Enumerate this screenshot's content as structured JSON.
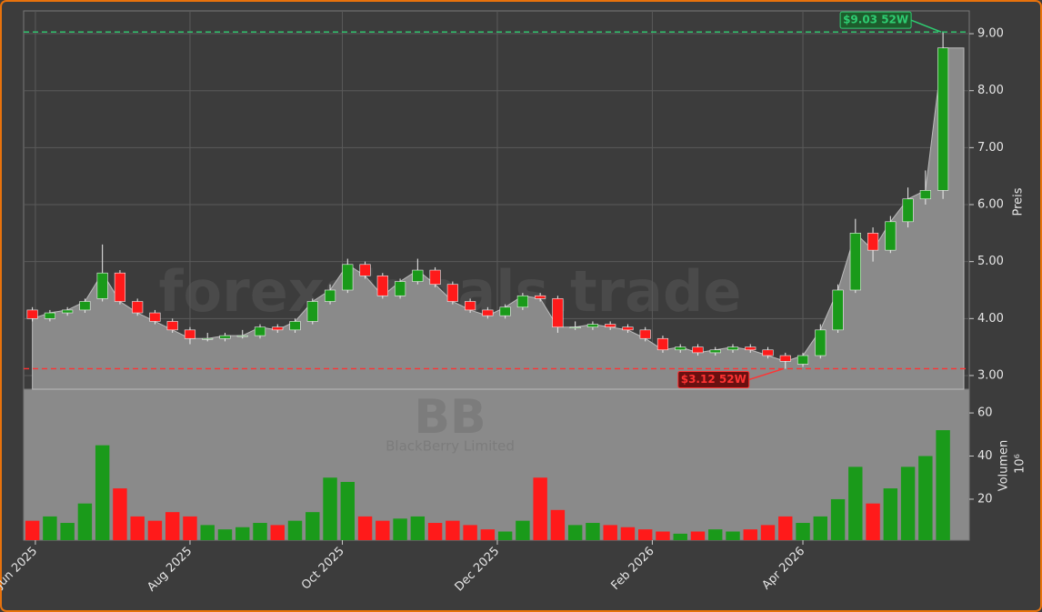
{
  "chart_data": {
    "type": "candlestick",
    "watermark": "forexsignals.trade",
    "symbol": "BB",
    "company": "BlackBerry Limited",
    "y_label": "Preis",
    "y2_label": "Volumen",
    "y2_unit": "10⁶",
    "xlim": [
      -0.5,
      53.5
    ],
    "xticks": [
      {
        "value": 0.17,
        "label": "Jun 2025"
      },
      {
        "value": 9.0,
        "label": "Aug 2025"
      },
      {
        "value": 17.7,
        "label": "Oct 2025"
      },
      {
        "value": 26.55,
        "label": "Dec 2025"
      },
      {
        "value": 35.4,
        "label": "Feb 2026"
      },
      {
        "value": 44.0,
        "label": "Apr 2026"
      }
    ],
    "ylim": [
      2.76,
      9.4
    ],
    "yticks": [
      {
        "value": 3,
        "label": "3.00"
      },
      {
        "value": 4,
        "label": "4.00"
      },
      {
        "value": 5,
        "label": "5.00"
      },
      {
        "value": 6,
        "label": "6.00"
      },
      {
        "value": 7,
        "label": "7.00"
      },
      {
        "value": 8,
        "label": "8.00"
      },
      {
        "value": 9,
        "label": "9.00"
      }
    ],
    "y2lim": [
      1,
      71
    ],
    "y2ticks": [
      20,
      40,
      60
    ],
    "grid": true,
    "up_color": "#1a9a1a",
    "down_color": "#ff1a1a",
    "area_color": "#8a8a8a",
    "open": [
      4.15,
      4.0,
      4.1,
      4.15,
      4.35,
      4.8,
      4.3,
      4.1,
      3.95,
      3.8,
      3.65,
      3.65,
      3.7,
      3.7,
      3.85,
      3.8,
      3.95,
      4.3,
      4.5,
      4.95,
      4.75,
      4.4,
      4.65,
      4.85,
      4.6,
      4.3,
      4.15,
      4.05,
      4.2,
      4.4,
      4.35,
      3.85,
      3.85,
      3.9,
      3.85,
      3.8,
      3.65,
      3.45,
      3.5,
      3.4,
      3.45,
      3.5,
      3.45,
      3.35,
      3.2,
      3.35,
      3.8,
      4.5,
      5.5,
      5.2,
      5.7,
      6.1,
      6.25
    ],
    "high": [
      4.2,
      4.15,
      4.2,
      4.35,
      5.3,
      4.85,
      4.35,
      4.15,
      4.0,
      3.85,
      3.75,
      3.75,
      3.8,
      3.9,
      3.9,
      4.0,
      4.35,
      4.6,
      5.05,
      5.0,
      4.8,
      4.7,
      5.05,
      4.9,
      4.65,
      4.35,
      4.2,
      4.25,
      4.45,
      4.45,
      4.4,
      3.95,
      3.95,
      3.95,
      3.9,
      3.85,
      3.7,
      3.55,
      3.55,
      3.5,
      3.55,
      3.55,
      3.5,
      3.4,
      3.4,
      3.9,
      4.6,
      5.75,
      5.6,
      5.8,
      6.3,
      6.6,
      9.03
    ],
    "low": [
      3.95,
      3.95,
      4.05,
      4.1,
      4.3,
      4.25,
      4.05,
      3.9,
      3.75,
      3.55,
      3.6,
      3.6,
      3.65,
      3.65,
      3.75,
      3.75,
      3.9,
      4.25,
      4.45,
      4.7,
      4.35,
      4.35,
      4.6,
      4.55,
      4.25,
      4.1,
      4.0,
      4.0,
      4.15,
      4.3,
      3.75,
      3.8,
      3.8,
      3.8,
      3.75,
      3.6,
      3.4,
      3.4,
      3.35,
      3.35,
      3.4,
      3.4,
      3.3,
      3.12,
      3.15,
      3.3,
      3.75,
      4.45,
      5.0,
      5.15,
      5.6,
      6.0,
      6.1
    ],
    "close": [
      4.0,
      4.1,
      4.15,
      4.3,
      4.8,
      4.3,
      4.1,
      3.95,
      3.8,
      3.65,
      3.65,
      3.7,
      3.7,
      3.85,
      3.8,
      3.95,
      4.3,
      4.5,
      4.95,
      4.75,
      4.4,
      4.65,
      4.85,
      4.6,
      4.3,
      4.15,
      4.05,
      4.2,
      4.4,
      4.35,
      3.85,
      3.85,
      3.9,
      3.85,
      3.8,
      3.65,
      3.45,
      3.5,
      3.4,
      3.45,
      3.5,
      3.45,
      3.35,
      3.25,
      3.35,
      3.8,
      4.5,
      5.5,
      5.2,
      5.7,
      6.1,
      6.25,
      8.75
    ],
    "volume": [
      10,
      12,
      9,
      18,
      45,
      25,
      12,
      10,
      14,
      12,
      8,
      6,
      7,
      9,
      8,
      10,
      14,
      30,
      28,
      12,
      10,
      11,
      12,
      9,
      10,
      8,
      6,
      5,
      10,
      30,
      15,
      8,
      9,
      8,
      7,
      6,
      5,
      4,
      5,
      6,
      5,
      6,
      8,
      12,
      9,
      12,
      20,
      35,
      18,
      25,
      35,
      40,
      52
    ],
    "annotations": [
      {
        "value": 9.03,
        "label": "$9.03 52W",
        "color": "#2ecc71"
      },
      {
        "value": 3.12,
        "label": "$3.12 52W",
        "color": "#ff3333"
      }
    ]
  }
}
